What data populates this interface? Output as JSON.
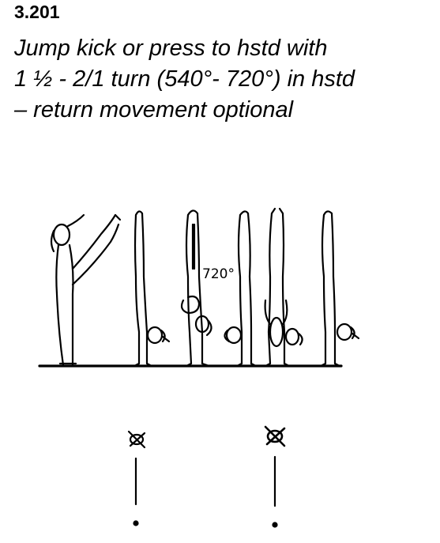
{
  "element": {
    "code": "3.201",
    "description_lines": [
      "Jump kick or press to hstd  with",
      "1 ½ - 2/1 turn (540°- 720°) in hstd",
      " – return movement optional"
    ]
  },
  "illustration": {
    "turn_label": "720°",
    "stroke_color": "#000000",
    "icons": [
      "gymnast-figures",
      "floor-line",
      "cross-marker-icon",
      "dotted-line-icon"
    ]
  }
}
